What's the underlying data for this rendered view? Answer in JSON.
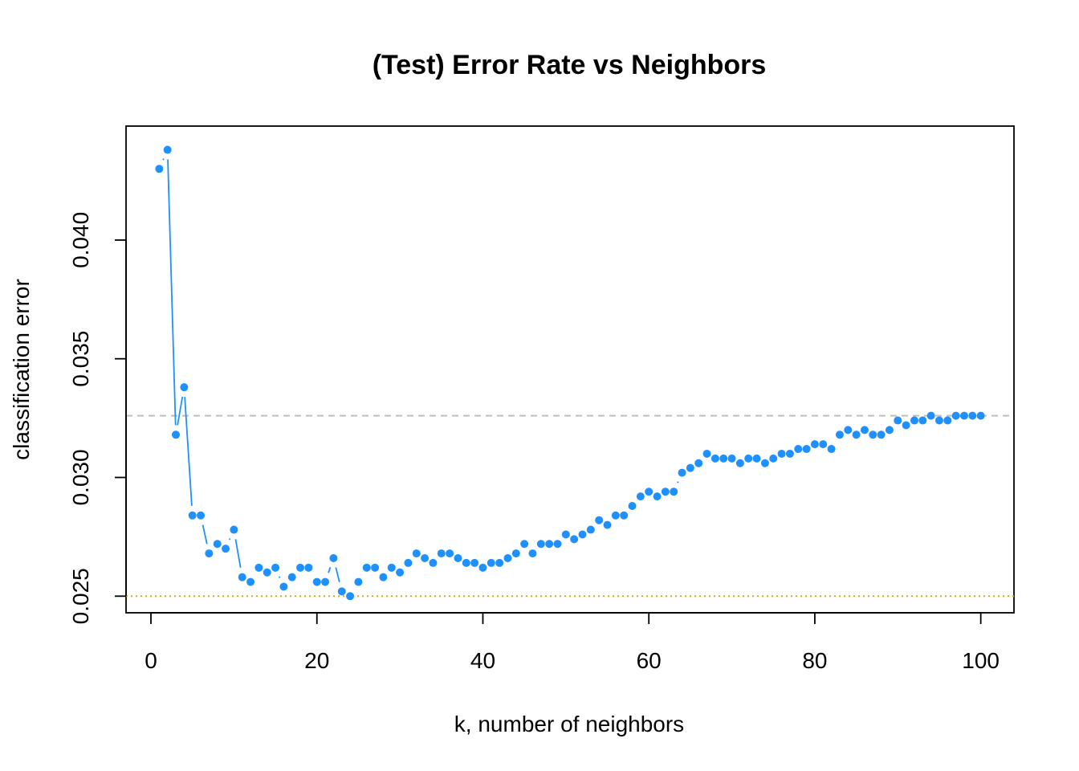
{
  "chart_data": {
    "type": "scatter",
    "title": "(Test) Error Rate vs Neighbors",
    "xlabel": "k, number of neighbors",
    "ylabel": "classification error",
    "xlim": [
      -3,
      104
    ],
    "ylim": [
      0.0243,
      0.0448
    ],
    "x_ticks": [
      0,
      20,
      40,
      60,
      80,
      100
    ],
    "x_tick_labels": [
      "0",
      "20",
      "40",
      "60",
      "80",
      "100"
    ],
    "y_ticks": [
      0.025,
      0.03,
      0.035,
      0.04
    ],
    "y_tick_labels": [
      "0.025",
      "0.030",
      "0.035",
      "0.040"
    ],
    "grid": false,
    "legend": "none",
    "series_color": "#1E90FF",
    "reference_lines": [
      {
        "value": 0.0326,
        "style": "dashed",
        "color": "#BEBEBE"
      },
      {
        "value": 0.025,
        "style": "dotted",
        "color": "#DAA520"
      }
    ],
    "x": [
      1,
      2,
      3,
      4,
      5,
      6,
      7,
      8,
      9,
      10,
      11,
      12,
      13,
      14,
      15,
      16,
      17,
      18,
      19,
      20,
      21,
      22,
      23,
      24,
      25,
      26,
      27,
      28,
      29,
      30,
      31,
      32,
      33,
      34,
      35,
      36,
      37,
      38,
      39,
      40,
      41,
      42,
      43,
      44,
      45,
      46,
      47,
      48,
      49,
      50,
      51,
      52,
      53,
      54,
      55,
      56,
      57,
      58,
      59,
      60,
      61,
      62,
      63,
      64,
      65,
      66,
      67,
      68,
      69,
      70,
      71,
      72,
      73,
      74,
      75,
      76,
      77,
      78,
      79,
      80,
      81,
      82,
      83,
      84,
      85,
      86,
      87,
      88,
      89,
      90,
      91,
      92,
      93,
      94,
      95,
      96,
      97,
      98,
      99,
      100
    ],
    "y": [
      0.043,
      0.0438,
      0.0318,
      0.0338,
      0.0284,
      0.0284,
      0.0268,
      0.0272,
      0.027,
      0.0278,
      0.0258,
      0.0256,
      0.0262,
      0.026,
      0.0262,
      0.0254,
      0.0258,
      0.0262,
      0.0262,
      0.0256,
      0.0256,
      0.0266,
      0.0252,
      0.025,
      0.0256,
      0.0262,
      0.0262,
      0.0258,
      0.0262,
      0.026,
      0.0264,
      0.0268,
      0.0266,
      0.0264,
      0.0268,
      0.0268,
      0.0266,
      0.0264,
      0.0264,
      0.0262,
      0.0264,
      0.0264,
      0.0266,
      0.0268,
      0.0272,
      0.0268,
      0.0272,
      0.0272,
      0.0272,
      0.0276,
      0.0274,
      0.0276,
      0.0278,
      0.0282,
      0.028,
      0.0284,
      0.0284,
      0.0288,
      0.0292,
      0.0294,
      0.0292,
      0.0294,
      0.0294,
      0.0302,
      0.0304,
      0.0306,
      0.031,
      0.0308,
      0.0308,
      0.0308,
      0.0306,
      0.0308,
      0.0308,
      0.0306,
      0.0308,
      0.031,
      0.031,
      0.0312,
      0.0312,
      0.0314,
      0.0314,
      0.0312,
      0.0318,
      0.032,
      0.0318,
      0.032,
      0.0318,
      0.0318,
      0.032,
      0.0324,
      0.0322,
      0.0324,
      0.0324,
      0.0326,
      0.0324,
      0.0324,
      0.0326,
      0.0326,
      0.0326,
      0.0326
    ]
  }
}
